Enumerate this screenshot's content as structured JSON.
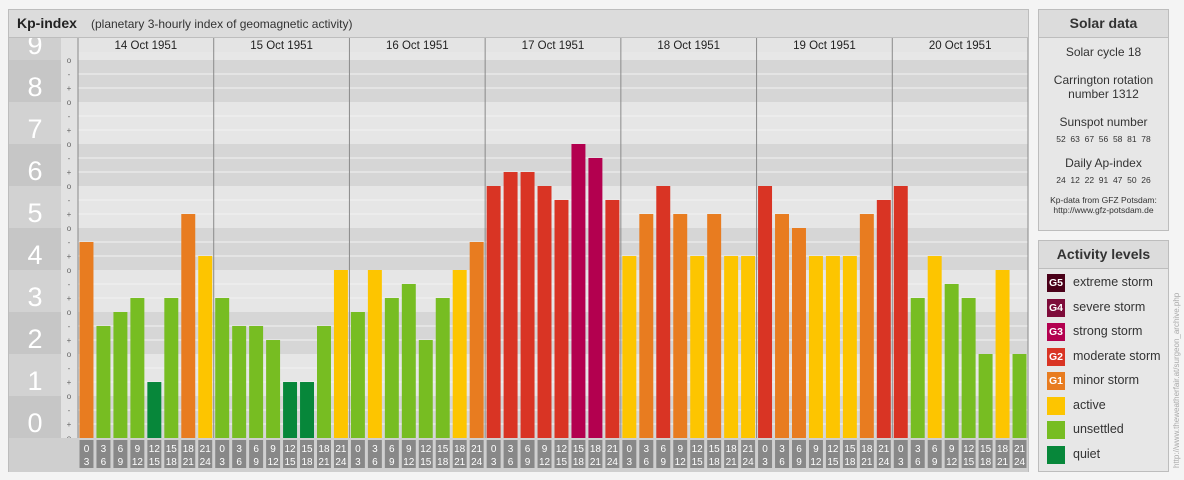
{
  "header": {
    "title": "Kp-index",
    "subtitle": "(planetary 3-hourly index of geomagnetic activity)"
  },
  "chart_data": {
    "type": "bar",
    "ylim": [
      0,
      9
    ],
    "yticks": [
      "0",
      "1",
      "2",
      "3",
      "4",
      "5",
      "6",
      "7",
      "8",
      "9"
    ],
    "minor_tick_marks": [
      "+",
      "o",
      "-"
    ],
    "days": [
      "14 Oct 1951",
      "15 Oct 1951",
      "16 Oct 1951",
      "17 Oct 1951",
      "18 Oct 1951",
      "19 Oct 1951",
      "20 Oct 1951"
    ],
    "interval_labels": [
      [
        "0",
        "3"
      ],
      [
        "3",
        "6"
      ],
      [
        "6",
        "9"
      ],
      [
        "9",
        "12"
      ],
      [
        "12",
        "15"
      ],
      [
        "15",
        "18"
      ],
      [
        "18",
        "21"
      ],
      [
        "21",
        "24"
      ]
    ],
    "values": [
      [
        4.667,
        2.667,
        3.0,
        3.333,
        1.333,
        3.333,
        5.333,
        4.333
      ],
      [
        3.333,
        2.667,
        2.667,
        2.333,
        1.333,
        1.333,
        2.667,
        4.0
      ],
      [
        3.0,
        4.0,
        3.333,
        3.667,
        2.333,
        3.333,
        4.0,
        4.667
      ],
      [
        6.0,
        6.333,
        6.333,
        6.0,
        5.667,
        7.0,
        6.667,
        5.667
      ],
      [
        4.333,
        5.333,
        6.0,
        5.333,
        4.333,
        5.333,
        4.333,
        4.333
      ],
      [
        6.0,
        5.333,
        5.0,
        4.333,
        4.333,
        4.333,
        5.333,
        5.667
      ],
      [
        6.0,
        3.333,
        4.333,
        3.667,
        3.333,
        2.0,
        4.0,
        2.0
      ]
    ],
    "colors": {
      "quiet": "#07873a",
      "unsettled": "#77bd22",
      "active": "#fdc500",
      "minor_storm": "#e87c20",
      "moderate_storm": "#d93424",
      "strong_storm": "#b3004f",
      "severe_storm": "#7e0c3a",
      "extreme_storm": "#4a0019"
    }
  },
  "solar": {
    "title": "Solar data",
    "cycle": "Solar cycle 18",
    "carrington_line1": "Carrington rotation",
    "carrington_line2": "number 1312",
    "sunspot_title": "Sunspot number",
    "sunspot_values": "52  63  67  56  58  81  78",
    "ap_title": "Daily Ap-index",
    "ap_values": "24  12  22  91  47  50  26",
    "source_line1": "Kp-data from GFZ Potsdam:",
    "source_line2": "http://www.gfz-potsdam.de"
  },
  "activity": {
    "title": "Activity levels",
    "levels": [
      {
        "code": "G5",
        "label": "extreme storm",
        "color": "#4a0019"
      },
      {
        "code": "G4",
        "label": "severe storm",
        "color": "#7e0c3a"
      },
      {
        "code": "G3",
        "label": "strong storm",
        "color": "#b3004f"
      },
      {
        "code": "G2",
        "label": "moderate storm",
        "color": "#d93424"
      },
      {
        "code": "G1",
        "label": "minor storm",
        "color": "#e87c20"
      },
      {
        "code": "",
        "label": "active",
        "color": "#fdc500"
      },
      {
        "code": "",
        "label": "unsettled",
        "color": "#77bd22"
      },
      {
        "code": "",
        "label": "quiet",
        "color": "#07873a"
      }
    ]
  },
  "credit": "http://www.theweatherfair.at/surgeon_archive.php"
}
